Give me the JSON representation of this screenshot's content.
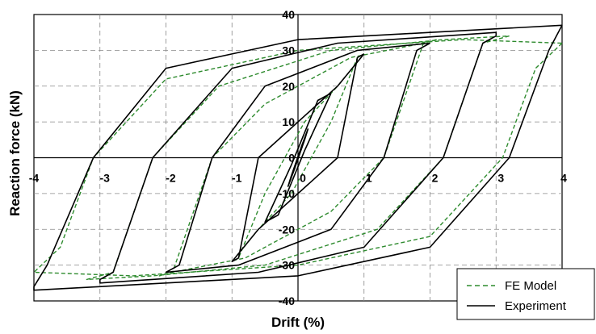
{
  "chart_data": {
    "type": "line",
    "xlabel": "Drift (%)",
    "ylabel": "Reaction force (kN)",
    "xlim": [
      -4,
      4
    ],
    "ylim": [
      -40,
      40
    ],
    "x_ticks": [
      -4,
      -3,
      -2,
      -1,
      0,
      1,
      2,
      3,
      4
    ],
    "y_ticks": [
      -40,
      -30,
      -20,
      -10,
      0,
      10,
      20,
      30,
      40
    ],
    "x_tick_labels": [
      "-4",
      "-3",
      "-2",
      "-1",
      "0",
      "1",
      "2",
      "3",
      "4"
    ],
    "y_tick_labels": [
      "-40",
      "-30",
      "-20",
      "-10",
      "0",
      "10",
      "20",
      "30",
      "40"
    ],
    "grid": true,
    "legend_position": "bottom-right",
    "series": [
      {
        "name": "FE Model",
        "color": "#2e8b2e",
        "style": "dashed",
        "loops": [
          {
            "x": [
              0.1,
              0.15,
              0.05,
              -0.1,
              -0.15,
              -0.05,
              0.1
            ],
            "y": [
              5,
              8,
              3,
              -5,
              -8,
              -3,
              5
            ]
          },
          {
            "x": [
              0.5,
              0.3,
              -0.1,
              -0.3,
              -0.5,
              -0.3,
              0.1,
              0.3,
              0.5
            ],
            "y": [
              18,
              16,
              -2,
              -10,
              -18,
              -16,
              2,
              10,
              18
            ]
          },
          {
            "x": [
              1.0,
              0.9,
              0.5,
              -0.1,
              -0.6,
              -1.0,
              -0.9,
              -0.5,
              0.1,
              0.6,
              1.0
            ],
            "y": [
              29,
              28,
              10,
              -10,
              -20,
              -29,
              -28,
              -10,
              10,
              20,
              29
            ]
          },
          {
            "x": [
              2.1,
              1.9,
              1.3,
              0.5,
              -0.8,
              -1.9,
              -2.1,
              -1.9,
              -1.3,
              -0.5,
              0.8,
              1.9,
              2.1
            ],
            "y": [
              33,
              32,
              0,
              -15,
              -28,
              -32,
              -33,
              -32,
              0,
              15,
              28,
              32,
              33
            ]
          },
          {
            "x": [
              3.2,
              2.8,
              2.2,
              1.2,
              -0.5,
              -2.2,
              -3.2,
              -2.8,
              -2.2,
              -1.2,
              0.5,
              2.2,
              3.2
            ],
            "y": [
              34,
              32,
              0,
              -20,
              -30,
              -33,
              -34,
              -32,
              0,
              20,
              30,
              33,
              34
            ]
          },
          {
            "x": [
              4.0,
              3.6,
              3.1,
              2.0,
              0.0,
              -2.5,
              -4.0,
              -3.6,
              -3.1,
              -2.0,
              0.0,
              2.5,
              4.0
            ],
            "y": [
              32,
              25,
              0,
              -22,
              -30,
              -33,
              -32,
              -25,
              0,
              22,
              30,
              33,
              32
            ]
          }
        ]
      },
      {
        "name": "Experiment",
        "color": "#000000",
        "style": "solid",
        "loops": [
          {
            "x": [
              0.1,
              0.15,
              0.05,
              -0.1,
              -0.15,
              -0.05,
              0.1
            ],
            "y": [
              5,
              8,
              3,
              -5,
              -8,
              -3,
              5
            ]
          },
          {
            "x": [
              0.5,
              0.3,
              -0.1,
              -0.3,
              -0.5,
              -0.3,
              0.1,
              0.3,
              0.5
            ],
            "y": [
              18,
              16,
              -2,
              -10,
              -18,
              -16,
              2,
              10,
              18
            ]
          },
          {
            "x": [
              1.0,
              0.9,
              0.6,
              0.0,
              -0.6,
              -1.0,
              -0.9,
              -0.6,
              0.0,
              0.6,
              1.0
            ],
            "y": [
              29,
              28,
              0,
              -10,
              -20,
              -29,
              -28,
              0,
              10,
              20,
              29
            ]
          },
          {
            "x": [
              2.0,
              1.8,
              1.3,
              0.5,
              -0.9,
              -2.0,
              -2.0,
              -1.8,
              -1.3,
              -0.5,
              0.9,
              2.0,
              2.0
            ],
            "y": [
              32,
              30,
              0,
              -20,
              -30,
              -32,
              -32,
              -30,
              0,
              20,
              30,
              32,
              32
            ]
          },
          {
            "x": [
              3.0,
              2.8,
              2.2,
              1.0,
              -0.6,
              -3.0,
              -3.0,
              -2.8,
              -2.2,
              -1.0,
              0.6,
              3.0,
              3.0
            ],
            "y": [
              34,
              32,
              0,
              -25,
              -32,
              -35,
              -34,
              -32,
              0,
              25,
              32,
              35,
              34
            ]
          },
          {
            "x": [
              4.0,
              3.8,
              3.2,
              2.0,
              0.0,
              -2.0,
              -4.0,
              -4.0,
              -3.8,
              -3.1,
              -2.0,
              0.0,
              2.0,
              4.0,
              4.0
            ],
            "y": [
              37,
              30,
              0,
              -25,
              -33,
              -35,
              -37,
              -36,
              -30,
              0,
              25,
              33,
              35,
              37,
              37
            ]
          }
        ]
      }
    ]
  },
  "legend": {
    "items": [
      {
        "label": "FE Model",
        "color": "#2e8b2e",
        "style": "dashed"
      },
      {
        "label": "Experiment",
        "color": "#000000",
        "style": "solid"
      }
    ]
  }
}
